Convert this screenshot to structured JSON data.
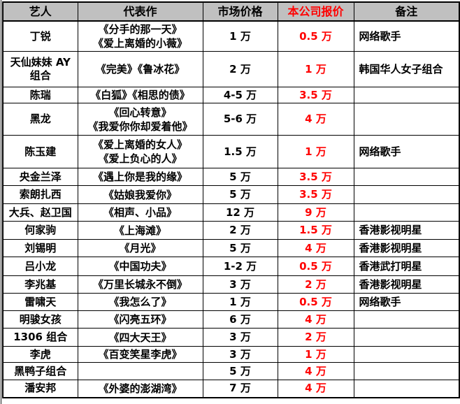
{
  "colors": {
    "header_background": "#c0c0c0",
    "quote_text": "#ff0000",
    "border": "#000000",
    "body_text": "#000000",
    "page_background": "#ffffff"
  },
  "table": {
    "headers": {
      "artist": "艺人",
      "works": "代表作",
      "market_price": "市场价格",
      "company_quote": "本公司报价",
      "note": "备注"
    },
    "rows": [
      {
        "artist": "丁锐",
        "works": "《分手的那一天》\n《爱上离婚的小薇》",
        "market_price": "1 万",
        "company_quote": "0.5 万",
        "note": "网络歌手"
      },
      {
        "artist": "天仙妹妹 AY\n组合",
        "works": "《完美》《鲁冰花》",
        "market_price": "2 万",
        "company_quote": "1 万",
        "note": "韩国华人女子组合"
      },
      {
        "artist": "陈瑞",
        "works": "《白狐》《相思的债》",
        "market_price": "4-5 万",
        "company_quote": "3.5 万",
        "note": ""
      },
      {
        "artist": "黑龙",
        "works": "《回心转意》\n《我爱你你却爱着他》",
        "market_price": "5-6 万",
        "company_quote": "4 万",
        "note": ""
      },
      {
        "artist": "陈玉建",
        "works": "《爱上离婚的女人》\n《爱上负心的人》",
        "market_price": "1.5 万",
        "company_quote": "1 万",
        "note": "网络歌手"
      },
      {
        "artist": "央金兰泽",
        "works": "《遇上你是我的缘》",
        "market_price": "5 万",
        "company_quote": "3.5 万",
        "note": ""
      },
      {
        "artist": "索朗扎西",
        "works": "《姑娘我爱你》",
        "market_price": "5 万",
        "company_quote": "3.5 万",
        "note": ""
      },
      {
        "artist": "大兵、赵卫国",
        "works": "《相声、小品》",
        "market_price": "12 万",
        "company_quote": "9 万",
        "note": ""
      },
      {
        "artist": "何家驹",
        "works": "《上海滩》",
        "market_price": "2 万",
        "company_quote": "1.5 万",
        "note": "香港影视明星"
      },
      {
        "artist": "刘锡明",
        "works": "《月光》",
        "market_price": "5 万",
        "company_quote": "4 万",
        "note": "香港影视明星"
      },
      {
        "artist": "吕小龙",
        "works": "《中国功夫》",
        "market_price": "1-2 万",
        "company_quote": "0.5 万",
        "note": "香港武打明星"
      },
      {
        "artist": "李兆基",
        "works": "《万里长城永不倒》",
        "market_price": "3 万",
        "company_quote": "2 万",
        "note": "香港影视明星"
      },
      {
        "artist": "雷啸天",
        "works": "《我怎么了》",
        "market_price": "1 万",
        "company_quote": "0.5 万",
        "note": "网络歌手"
      },
      {
        "artist": "明骏女孩",
        "works": "《闪亮五环》",
        "market_price": "6 万",
        "company_quote": "4 万",
        "note": ""
      },
      {
        "artist": "1306 组合",
        "works": "《四大天王》",
        "market_price": "3 万",
        "company_quote": "2 万",
        "note": ""
      },
      {
        "artist": "李虎",
        "works": "《百变笑星李虎》",
        "market_price": "3 万",
        "company_quote": "1 万",
        "note": ""
      },
      {
        "artist": "黑鸭子组合",
        "works": "",
        "market_price": "5 万",
        "company_quote": "4 万",
        "note": ""
      },
      {
        "artist": "潘安邦",
        "works": "《外婆的澎湖湾》",
        "market_price": "7 万",
        "company_quote": "4 万",
        "note": ""
      }
    ]
  }
}
